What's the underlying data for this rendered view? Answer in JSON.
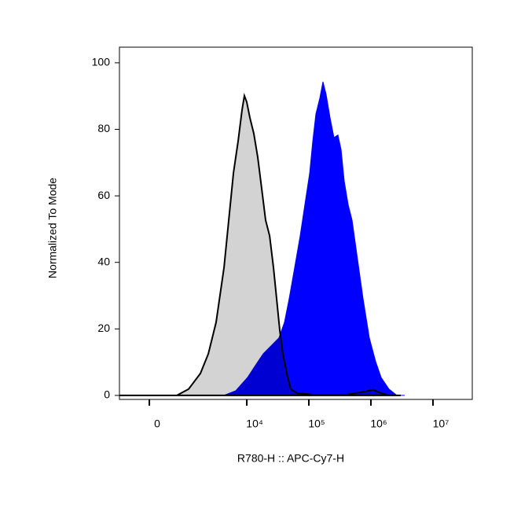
{
  "chart_data": {
    "type": "area",
    "x_label": "R780-H :: APC-Cy7-H",
    "y_label": "Normalized To Mode",
    "xscale": "biexponential",
    "xlim": [
      -727,
      43000000
    ],
    "xticks": [
      0,
      {
        "value": 10000,
        "label": "10⁴"
      },
      {
        "value": 100000,
        "label": "10⁵"
      },
      {
        "value": 1000000,
        "label": "10⁶"
      },
      {
        "value": 10000000,
        "label": "10⁷"
      }
    ],
    "ylim": [
      -1.2,
      104.7
    ],
    "yticks": [
      0,
      20,
      40,
      60,
      80,
      100
    ],
    "series": [
      {
        "color": "#0000ff",
        "x": [
          2744,
          4277,
          6634,
          10281,
          13773,
          18421,
          24667,
          33006,
          40511,
          48259,
          59180,
          72576,
          86457,
          103027,
          115670,
          130035,
          150479,
          169040,
          189968,
          219827,
          254205,
          294017,
          330601,
          371489,
          429862,
          497112,
          609554,
          747820,
          943652,
          1192208,
          1461000,
          1956000,
          2620000,
          3505000
        ],
        "values": [
          0,
          0,
          1.4,
          5.4,
          9,
          12.5,
          14.9,
          17.3,
          22,
          29.1,
          38.5,
          48,
          57.4,
          66.9,
          76.4,
          84.6,
          89.4,
          94.3,
          90.5,
          83.5,
          77.5,
          78.3,
          74,
          64.5,
          57.4,
          52.7,
          40.9,
          29.1,
          17.3,
          10.2,
          5.4,
          1.9,
          0,
          0
        ]
      },
      {
        "color": "#d3d3d3",
        "x": [
          -727,
          159,
          649,
          1093,
          1749,
          2366,
          3184,
          4277,
          5251,
          6079,
          7241,
          8377,
          9151,
          9985,
          11228,
          12993,
          15026,
          17383,
          20116,
          23295,
          26927,
          30263,
          34002,
          38198,
          44224,
          51164,
          64560,
          122600,
          394300,
          815600,
          1091600,
          1461000,
          1956000,
          3029000
        ],
        "values": [
          0,
          0,
          0,
          1.9,
          6.6,
          12.5,
          22,
          38.5,
          55.1,
          66.9,
          76.4,
          85.8,
          90.1,
          88.2,
          83.5,
          78.7,
          71.6,
          62.2,
          52.7,
          48,
          38.5,
          29.1,
          19.6,
          12.5,
          6.6,
          1.9,
          0.7,
          0.2,
          0.2,
          1.2,
          1.7,
          0.7,
          0,
          0
        ]
      }
    ]
  }
}
